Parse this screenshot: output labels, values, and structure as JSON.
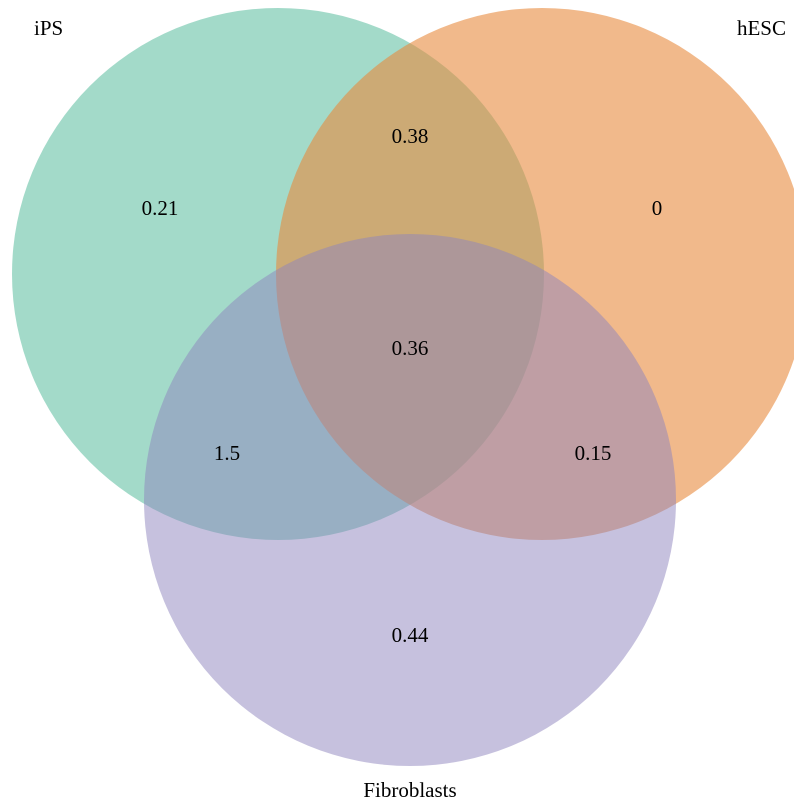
{
  "sets": {
    "ips": {
      "label": "iPS",
      "color": "#66c2a5"
    },
    "hesc": {
      "label": "hESC",
      "color": "#e78a3d"
    },
    "fibroblasts": {
      "label": "Fibroblasts",
      "color": "#8d83be"
    }
  },
  "regions": {
    "ips_only": "0.21",
    "hesc_only": "0",
    "fibroblasts_only": "0.44",
    "ips_hesc": "0.38",
    "ips_fibroblasts": "1.5",
    "hesc_fibroblasts": "0.15",
    "all_three": "0.36"
  }
}
